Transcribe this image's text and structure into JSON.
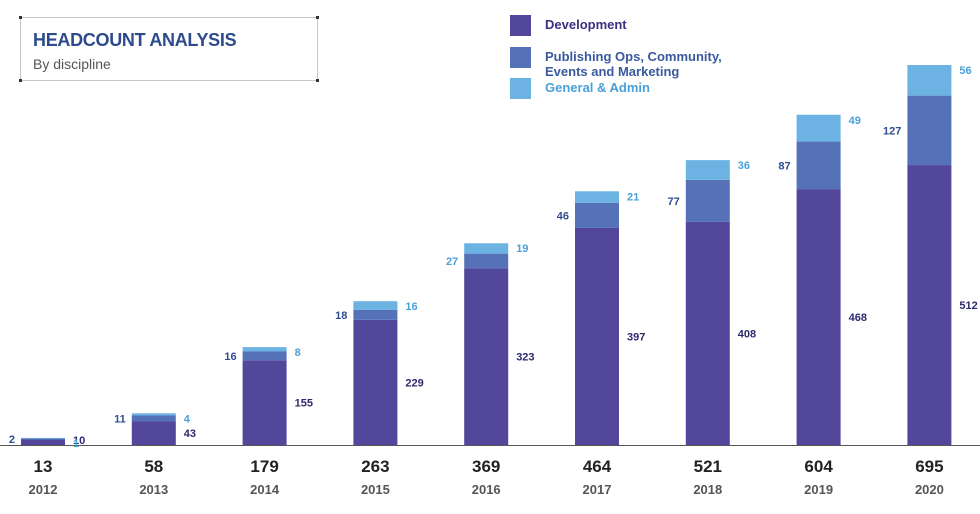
{
  "header": {
    "title": "HEADCOUNT ANALYSIS",
    "subtitle": "By discipline"
  },
  "colors": {
    "development": "#52479a",
    "publishing": "#5572b8",
    "general": "#6cb3e3",
    "axis": "#555555"
  },
  "legend": [
    {
      "key": "development",
      "label_line1": "Development",
      "label_line2": "",
      "color": "#52479a",
      "text_color": "#3a2f80"
    },
    {
      "key": "publishing",
      "label_line1": "Publishing Ops, Community,",
      "label_line2": "Events and Marketing",
      "color": "#5572b8",
      "text_color": "#3a5aa0"
    },
    {
      "key": "general",
      "label_line1": "General & Admin",
      "label_line2": "",
      "color": "#6cb3e3",
      "text_color": "#4aa0d8"
    }
  ],
  "chart_data": {
    "type": "bar",
    "stacked": true,
    "title": "HEADCOUNT ANALYSIS",
    "subtitle": "By discipline",
    "categories": [
      "2012",
      "2013",
      "2014",
      "2015",
      "2016",
      "2017",
      "2018",
      "2019",
      "2020"
    ],
    "totals": [
      "13",
      "58",
      "179",
      "263",
      "369",
      "464",
      "521",
      "604",
      "695"
    ],
    "series": [
      {
        "name": "Development",
        "values": [
          10,
          43,
          155,
          229,
          323,
          397,
          408,
          468,
          512
        ]
      },
      {
        "name": "Publishing Ops, Community, Events and Marketing",
        "values": [
          2,
          11,
          16,
          18,
          27,
          46,
          77,
          87,
          127
        ]
      },
      {
        "name": "General & Admin",
        "values": [
          1,
          4,
          8,
          16,
          19,
          21,
          36,
          49,
          56
        ]
      }
    ],
    "ylim": [
      0,
      695
    ],
    "grid": false,
    "legend_position": "top-right"
  }
}
